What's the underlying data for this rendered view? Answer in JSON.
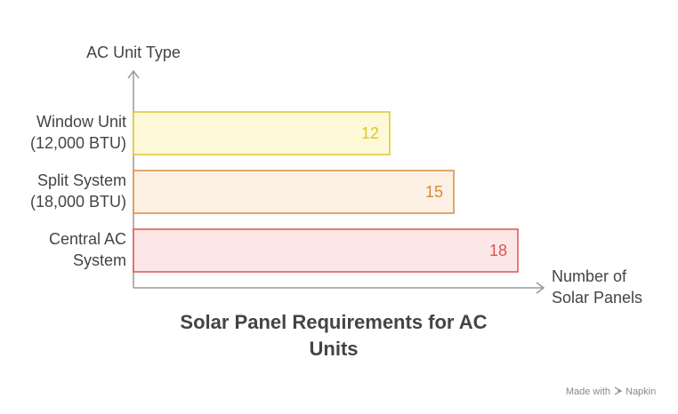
{
  "chart_data": {
    "type": "bar",
    "orientation": "horizontal",
    "title": [
      "Solar Panel Requirements for AC",
      "Units"
    ],
    "y_label": "AC Unit Type",
    "x_label": [
      "Number of",
      "Solar Panels"
    ],
    "categories": [
      [
        "Window Unit",
        "(12,000 BTU)"
      ],
      [
        "Split System",
        "(18,000 BTU)"
      ],
      [
        "Central AC",
        "System"
      ]
    ],
    "values": [
      12,
      15,
      18
    ],
    "colors": [
      "#e0c62a",
      "#dc8a3c",
      "#da5550"
    ],
    "fills": [
      "#fdf9d8",
      "#fdf0e4",
      "#fde7e6"
    ],
    "xlim": [
      0,
      18
    ],
    "watermark": [
      "Made with",
      "Napkin"
    ]
  }
}
